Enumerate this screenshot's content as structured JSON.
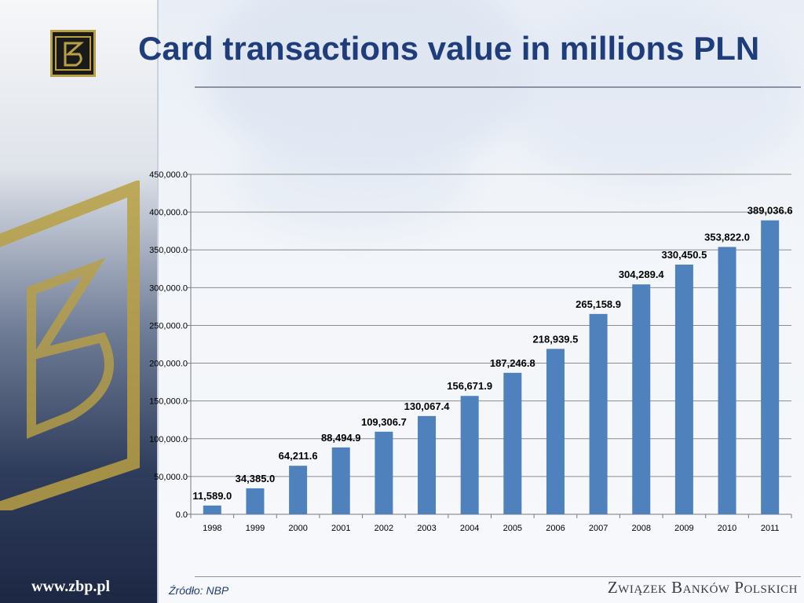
{
  "slide": {
    "title": "Card transactions value in millions PLN",
    "footer_url": "www.zbp.pl",
    "footer_source": "Źródło: NBP",
    "footer_org": "Związek Banków Polskich"
  },
  "colors": {
    "bar": "#4f81bd",
    "title": "#1f3d7a",
    "gridline": "#8c8c8c",
    "logo_gold": "#b9a043"
  },
  "chart_data": {
    "type": "bar",
    "title": "",
    "xlabel": "",
    "ylabel": "",
    "categories": [
      "1998",
      "1999",
      "2000",
      "2001",
      "2002",
      "2003",
      "2004",
      "2005",
      "2006",
      "2007",
      "2008",
      "2009",
      "2010",
      "2011"
    ],
    "values": [
      11589.0,
      34385.0,
      64211.6,
      88494.9,
      109306.7,
      130067.4,
      156671.9,
      187246.8,
      218939.5,
      265158.9,
      304289.4,
      330450.5,
      353822.0,
      389036.6
    ],
    "value_labels": [
      "11,589.0",
      "34,385.0",
      "64,211.6",
      "88,494.9",
      "109,306.7",
      "130,067.4",
      "156,671.9",
      "187,246.8",
      "218,939.5",
      "265,158.9",
      "304,289.4",
      "330,450.5",
      "353,822.0",
      "389,036.6"
    ],
    "ylim": [
      0,
      450000
    ],
    "yticks": [
      0,
      50000,
      100000,
      150000,
      200000,
      250000,
      300000,
      350000,
      400000,
      450000
    ],
    "ytick_labels": [
      "0.0",
      "50,000.0",
      "100,000.0",
      "150,000.0",
      "200,000.0",
      "250,000.0",
      "300,000.0",
      "350,000.0",
      "400,000.0",
      "450,000.0"
    ],
    "grid": true,
    "legend": "none"
  }
}
